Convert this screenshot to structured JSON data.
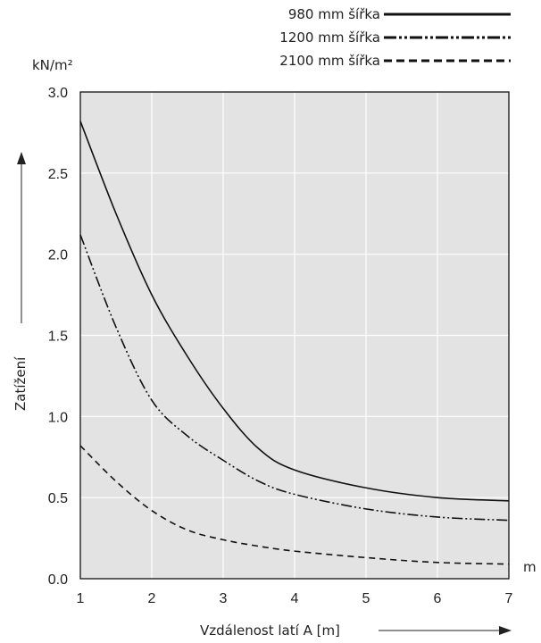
{
  "chart_data": {
    "type": "line",
    "title": "",
    "xlabel": "Vzdálenost latí A [m]",
    "ylabel": "Zatížení",
    "y_unit": "kN/m²",
    "x_unit": "m",
    "xlim": [
      1,
      7
    ],
    "ylim": [
      0.0,
      3.0
    ],
    "x_ticks": [
      "1",
      "2",
      "3",
      "4",
      "5",
      "6",
      "7"
    ],
    "y_ticks": [
      "0.0",
      "0.5",
      "1.0",
      "1.5",
      "2.0",
      "2.5",
      "3.0"
    ],
    "grid": true,
    "legend_position": "top-right",
    "series": [
      {
        "name": "980 mm šířka",
        "style": "solid",
        "x": [
          1,
          1.5,
          2,
          2.5,
          3,
          3.5,
          4,
          5,
          6,
          7
        ],
        "y": [
          2.82,
          2.25,
          1.75,
          1.37,
          1.05,
          0.8,
          0.67,
          0.56,
          0.5,
          0.48
        ]
      },
      {
        "name": "1200 mm šířka",
        "style": "dashdotdot",
        "x": [
          1,
          1.5,
          2,
          2.5,
          3,
          3.5,
          4,
          5,
          6,
          7
        ],
        "y": [
          2.12,
          1.55,
          1.1,
          0.88,
          0.73,
          0.6,
          0.52,
          0.43,
          0.38,
          0.36
        ]
      },
      {
        "name": "2100 mm šířka",
        "style": "dashed",
        "x": [
          1,
          1.5,
          2,
          2.5,
          3,
          3.5,
          4,
          5,
          6,
          7
        ],
        "y": [
          0.82,
          0.6,
          0.42,
          0.3,
          0.24,
          0.2,
          0.17,
          0.13,
          0.1,
          0.09
        ]
      }
    ]
  },
  "colors": {
    "plot_bg": "#e3e3e3",
    "grid": "#ffffff",
    "line": "#111111",
    "frame": "#111111"
  }
}
